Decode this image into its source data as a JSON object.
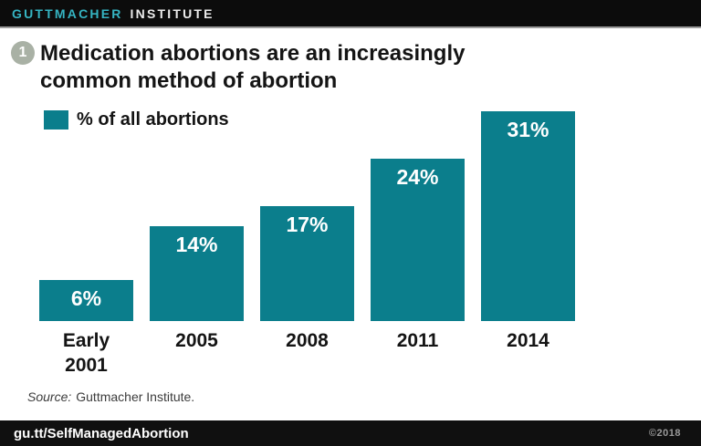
{
  "header": {
    "brand_primary": "GUTTMACHER",
    "brand_secondary": "INSTITUTE"
  },
  "figure": {
    "number": "1",
    "title_line1": "Medication abortions are an increasingly",
    "title_line2": "common method of abortion"
  },
  "legend": {
    "label": "% of all abortions"
  },
  "chart_data": {
    "type": "bar",
    "title": "Medication abortions are an increasingly common method of abortion",
    "legend_entries": [
      "% of all abortions"
    ],
    "legend_position": "top-left",
    "categories": [
      "Early\n2001",
      "2005",
      "2008",
      "2011",
      "2014"
    ],
    "values": [
      6,
      14,
      17,
      24,
      31
    ],
    "value_labels": [
      "6%",
      "14%",
      "17%",
      "24%",
      "31%"
    ],
    "xlabel": "",
    "ylabel": "",
    "ylim": [
      0,
      32
    ],
    "grid": false,
    "bar_color": "#0b7e8c",
    "value_label_color": "#ffffff"
  },
  "source": {
    "label": "Source:",
    "text": "Guttmacher Institute."
  },
  "footer": {
    "link": "gu.tt/SelfManagedAbortion",
    "copyright": "©2018"
  },
  "colors": {
    "bar_teal": "#0b7e8c",
    "brand_teal": "#35b4c2",
    "figure_circle": "#a9b1a5",
    "header_bg": "#0c0c0c",
    "footer_bg": "#101010",
    "copyright_gray": "#9a9a9a"
  }
}
